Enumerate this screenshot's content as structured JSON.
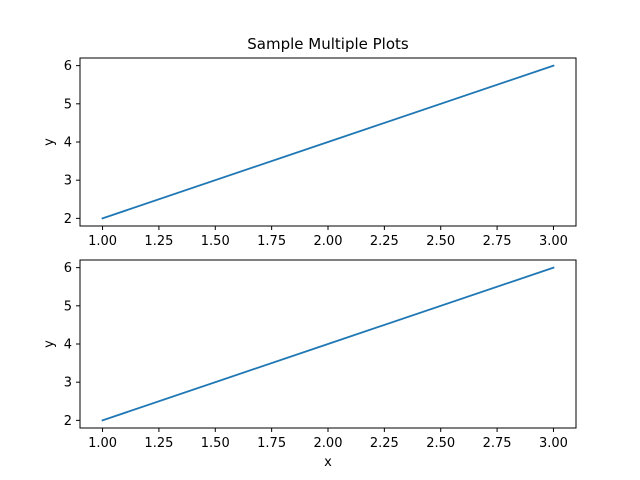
{
  "chart_data": [
    {
      "type": "line",
      "title": "Sample Multiple Plots",
      "xlabel": "",
      "ylabel": "y",
      "x": [
        1,
        2,
        3
      ],
      "series": [
        {
          "values": [
            2,
            4,
            6
          ]
        }
      ],
      "xlim": [
        0.9,
        3.1
      ],
      "ylim": [
        1.8,
        6.2
      ],
      "xticks": [
        1.0,
        1.25,
        1.5,
        1.75,
        2.0,
        2.25,
        2.5,
        2.75,
        3.0
      ],
      "xtick_labels": [
        "1.00",
        "1.25",
        "1.50",
        "1.75",
        "2.00",
        "2.25",
        "2.50",
        "2.75",
        "3.00"
      ],
      "yticks": [
        2,
        3,
        4,
        5,
        6
      ],
      "ytick_labels": [
        "2",
        "3",
        "4",
        "5",
        "6"
      ],
      "grid": false,
      "line_color": "#1f77b4"
    },
    {
      "type": "line",
      "title": "",
      "xlabel": "x",
      "ylabel": "y",
      "x": [
        1,
        2,
        3
      ],
      "series": [
        {
          "values": [
            2,
            4,
            6
          ]
        }
      ],
      "xlim": [
        0.9,
        3.1
      ],
      "ylim": [
        1.8,
        6.2
      ],
      "xticks": [
        1.0,
        1.25,
        1.5,
        1.75,
        2.0,
        2.25,
        2.5,
        2.75,
        3.0
      ],
      "xtick_labels": [
        "1.00",
        "1.25",
        "1.50",
        "1.75",
        "2.00",
        "2.25",
        "2.50",
        "2.75",
        "3.00"
      ],
      "yticks": [
        2,
        3,
        4,
        5,
        6
      ],
      "ytick_labels": [
        "2",
        "3",
        "4",
        "5",
        "6"
      ],
      "grid": false,
      "line_color": "#1f77b4"
    }
  ]
}
